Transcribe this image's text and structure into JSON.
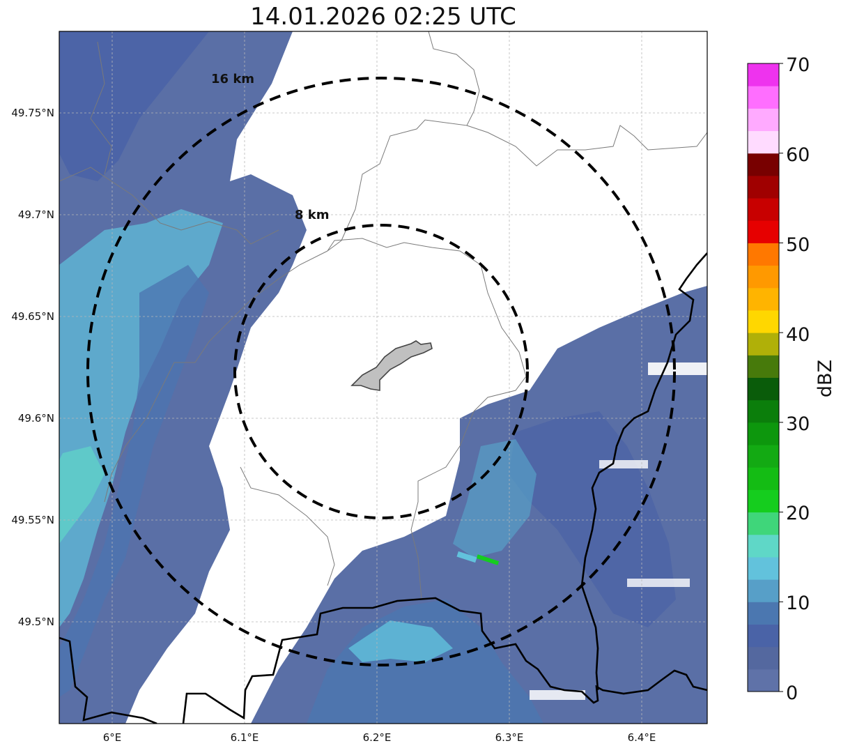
{
  "title": "14.01.2026 02:25 UTC",
  "map": {
    "lon_ticks": [
      "6°E",
      "6.1°E",
      "6.2°E",
      "6.3°E",
      "6.4°E"
    ],
    "lat_ticks": [
      "49.75°N",
      "49.7°N",
      "49.65°N",
      "49.6°N",
      "49.55°N",
      "49.5°N"
    ],
    "range_rings": [
      {
        "label": "16 km",
        "radius_km": 16
      },
      {
        "label": "8 km",
        "radius_km": 8
      }
    ],
    "radar_center": {
      "lon": 6.203,
      "lat": 49.622
    },
    "lon_range": [
      5.96,
      6.45
    ],
    "lat_range": [
      49.45,
      49.79
    ],
    "gridlines": true
  },
  "colorbar": {
    "label": "dBZ",
    "ticks": [
      "0",
      "10",
      "20",
      "30",
      "40",
      "50",
      "60",
      "70"
    ],
    "range": [
      0,
      70
    ],
    "colors": [
      "#5f72a8",
      "#54689f",
      "#4a63a7",
      "#4b77b0",
      "#579fc8",
      "#62c2dc",
      "#5fd7c7",
      "#3fd67a",
      "#15cd1e",
      "#14bc14",
      "#13aa13",
      "#0d970d",
      "#0b7e0b",
      "#0a5c0a",
      "#477a0b",
      "#b0b008",
      "#ffd700",
      "#ffb400",
      "#ff9900",
      "#ff7800",
      "#e60000",
      "#c80000",
      "#a00000",
      "#780000",
      "#ffdbff",
      "#ffaaff",
      "#ff6eff",
      "#ee33ee"
    ]
  }
}
